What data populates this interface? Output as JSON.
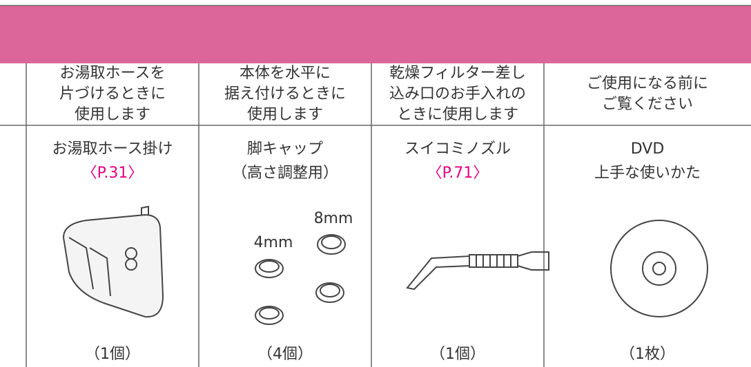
{
  "table": {
    "columns": [
      {
        "usage": [
          "お湯取ホースを",
          "片づけるときに",
          "使用します"
        ],
        "name": [
          "お湯取ホース掛け"
        ],
        "page": "〈P.31〉",
        "count": "（1個）"
      },
      {
        "usage": [
          "本体を水平に",
          "据え付けるときに",
          "使用します"
        ],
        "name": [
          "脚キャップ",
          "（高さ調整用）"
        ],
        "sizes": [
          "4mm",
          "8mm"
        ],
        "count": "（4個）"
      },
      {
        "usage": [
          "乾燥フィルター差し",
          "込み口のお手入れの",
          "ときに使用します"
        ],
        "name": [
          "スイコミノズル"
        ],
        "page": "〈P.71〉",
        "count": "（1個）"
      },
      {
        "usage": [
          "ご使用になる前に",
          "ご覧ください"
        ],
        "name": [
          "DVD",
          "上手な使いかた"
        ],
        "count": "（1枚）"
      }
    ]
  }
}
